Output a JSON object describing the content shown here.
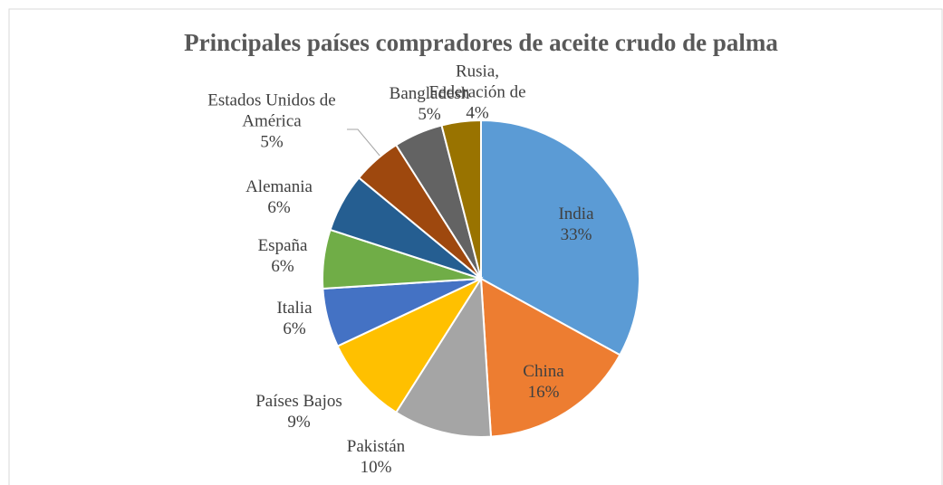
{
  "chart_data": {
    "type": "pie",
    "title": "Principales países compradores de aceite crudo de palma",
    "categories": [
      "India",
      "China",
      "Pakistán",
      "Países Bajos",
      "Italia",
      "España",
      "Alemania",
      "Estados Unidos de América",
      "Bangladesh",
      "Rusia, Federación de"
    ],
    "values": [
      33,
      16,
      10,
      9,
      6,
      6,
      6,
      5,
      5,
      4
    ],
    "value_labels": [
      "33%",
      "16%",
      "10%",
      "9%",
      "6%",
      "6%",
      "6%",
      "5%",
      "5%",
      "4%"
    ],
    "colors": [
      "#5b9bd5",
      "#ed7d31",
      "#a5a5a5",
      "#ffc000",
      "#4472c4",
      "#70ad47",
      "#255e91",
      "#9e480e",
      "#636363",
      "#997300"
    ]
  }
}
